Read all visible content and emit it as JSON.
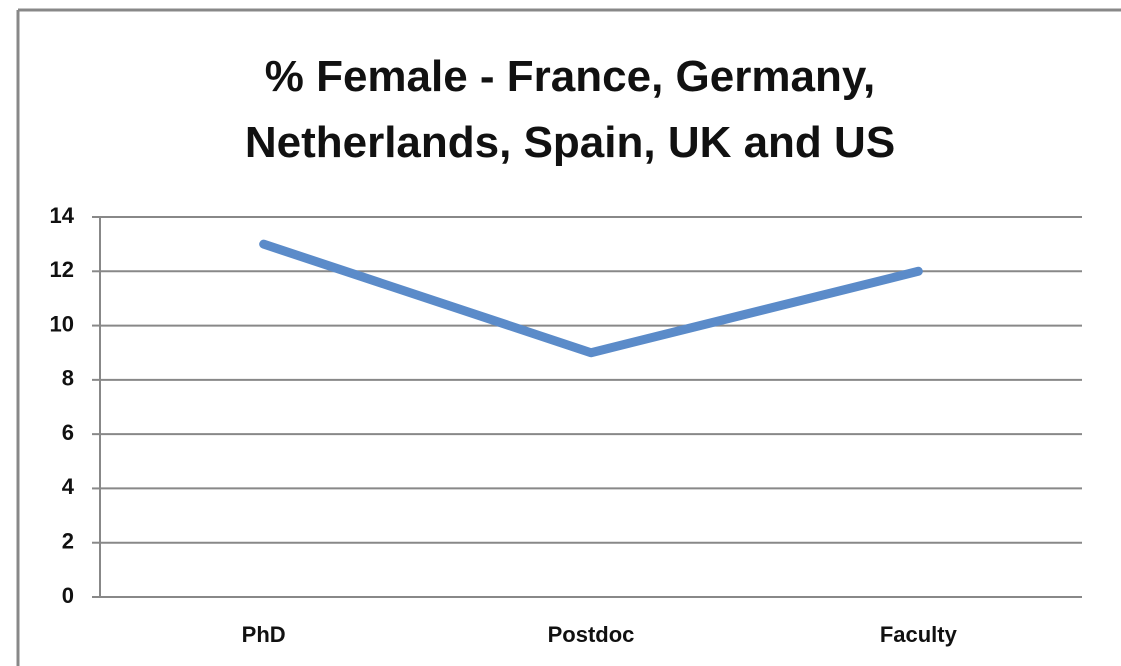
{
  "chart_data": {
    "type": "line",
    "title": "% Female - France, Germany, Netherlands, Spain, UK and US",
    "categories": [
      "PhD",
      "Postdoc",
      "Faculty"
    ],
    "values": [
      13,
      9,
      12
    ],
    "color": "#5b8bc9",
    "ylim": [
      0,
      14
    ],
    "yticks": [
      0,
      2,
      4,
      6,
      8,
      10,
      12,
      14
    ],
    "grid": true
  }
}
